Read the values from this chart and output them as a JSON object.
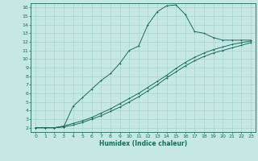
{
  "xlabel": "Humidex (Indice chaleur)",
  "bg_color": "#c5e8e5",
  "line_color": "#1a6b5a",
  "grid_color": "#a8d4d0",
  "xlim": [
    -0.5,
    23.5
  ],
  "ylim": [
    1.5,
    16.5
  ],
  "xticks": [
    0,
    1,
    2,
    3,
    4,
    5,
    6,
    7,
    8,
    9,
    10,
    11,
    12,
    13,
    14,
    15,
    16,
    17,
    18,
    19,
    20,
    21,
    22,
    23
  ],
  "yticks": [
    2,
    3,
    4,
    5,
    6,
    7,
    8,
    9,
    10,
    11,
    12,
    13,
    14,
    15,
    16
  ],
  "line1_x": [
    0,
    1,
    2,
    3,
    4,
    5,
    6,
    7,
    8,
    9,
    10,
    11,
    12,
    13,
    14,
    15,
    16,
    17,
    18,
    19,
    20,
    21,
    22,
    23
  ],
  "line1_y": [
    2.0,
    2.0,
    2.0,
    2.1,
    4.5,
    5.5,
    6.5,
    7.5,
    8.3,
    9.5,
    11.0,
    11.5,
    14.0,
    15.5,
    16.2,
    16.3,
    15.2,
    13.2,
    13.0,
    12.5,
    12.2,
    12.2,
    12.2,
    12.2
  ],
  "line2_x": [
    0,
    1,
    2,
    3,
    4,
    5,
    6,
    7,
    8,
    9,
    10,
    11,
    12,
    13,
    14,
    15,
    16,
    17,
    18,
    19,
    20,
    21,
    22,
    23
  ],
  "line2_y": [
    2.0,
    2.0,
    2.0,
    2.2,
    2.5,
    2.8,
    3.2,
    3.7,
    4.2,
    4.8,
    5.4,
    6.0,
    6.7,
    7.4,
    8.1,
    8.9,
    9.6,
    10.2,
    10.7,
    11.1,
    11.4,
    11.7,
    11.9,
    12.1
  ],
  "line3_x": [
    0,
    1,
    2,
    3,
    4,
    5,
    6,
    7,
    8,
    9,
    10,
    11,
    12,
    13,
    14,
    15,
    16,
    17,
    18,
    19,
    20,
    21,
    22,
    23
  ],
  "line3_y": [
    2.0,
    2.0,
    2.0,
    2.1,
    2.3,
    2.6,
    3.0,
    3.4,
    3.9,
    4.4,
    5.0,
    5.6,
    6.3,
    7.0,
    7.8,
    8.5,
    9.2,
    9.8,
    10.3,
    10.7,
    11.0,
    11.3,
    11.6,
    11.9
  ]
}
